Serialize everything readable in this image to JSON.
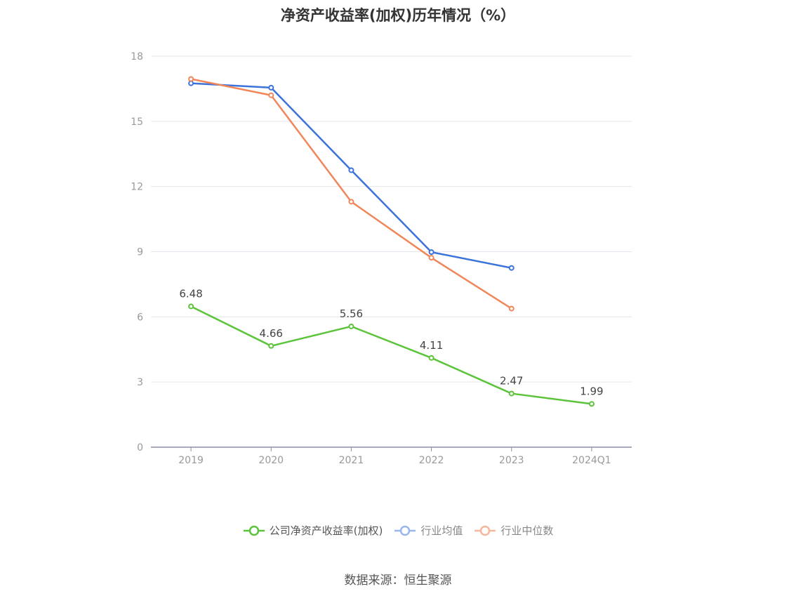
{
  "chart_data": {
    "type": "line",
    "title": "净资产收益率(加权)历年情况（%）",
    "categories": [
      "2019",
      "2020",
      "2021",
      "2022",
      "2023",
      "2024Q1"
    ],
    "ylim": [
      0,
      18
    ],
    "yticks": [
      0,
      3,
      6,
      9,
      12,
      15,
      18
    ],
    "grid": true,
    "legend_position": "bottom",
    "series": [
      {
        "name": "公司净资产收益率(加权)",
        "color": "#5cc43a",
        "values": [
          6.48,
          4.66,
          5.56,
          4.11,
          2.47,
          1.99
        ],
        "labels": [
          "6.48",
          "4.66",
          "5.56",
          "4.11",
          "2.47",
          "1.99"
        ]
      },
      {
        "name": "行业均值",
        "color": "#3b73db",
        "values": [
          16.75,
          16.55,
          12.75,
          8.98,
          8.25,
          null
        ]
      },
      {
        "name": "行业中位数",
        "color": "#f0875a",
        "values": [
          16.95,
          16.2,
          11.3,
          8.72,
          6.38,
          null
        ]
      }
    ]
  },
  "source": "数据来源：恒生聚源"
}
